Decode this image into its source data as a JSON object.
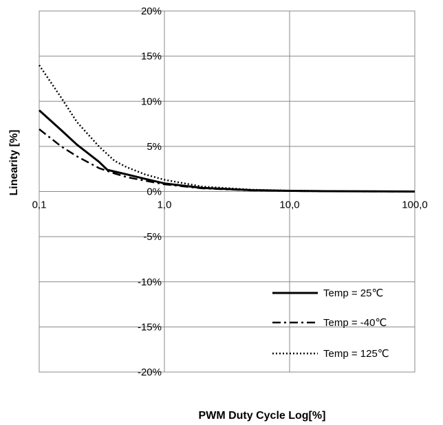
{
  "chart_data": {
    "type": "line",
    "title": "",
    "xlabel": "PWM Duty Cycle Log[%]",
    "ylabel": "Linearity [%]",
    "xscale": "log",
    "xlim": [
      0.1,
      100
    ],
    "ylim": [
      -20,
      20
    ],
    "x_ticks": [
      {
        "value": 0.1,
        "label": "0,1"
      },
      {
        "value": 1,
        "label": "1,0"
      },
      {
        "value": 10,
        "label": "10,0"
      },
      {
        "value": 100,
        "label": "100,0"
      }
    ],
    "y_ticks": [
      {
        "value": 20,
        "label": "20%"
      },
      {
        "value": 15,
        "label": "15%"
      },
      {
        "value": 10,
        "label": "10%"
      },
      {
        "value": 5,
        "label": "5%"
      },
      {
        "value": 0,
        "label": "0%"
      },
      {
        "value": -5,
        "label": "-5%"
      },
      {
        "value": -10,
        "label": "-10%"
      },
      {
        "value": -15,
        "label": "-15%"
      },
      {
        "value": -20,
        "label": "-20%"
      }
    ],
    "grid": true,
    "legend_position": "bottom-right",
    "series": [
      {
        "name": "Temp = 25℃",
        "style": "solid",
        "color": "#000000",
        "x": [
          0.1,
          0.15,
          0.2,
          0.3,
          0.35,
          0.5,
          0.7,
          1,
          2,
          5,
          10,
          20,
          50,
          100
        ],
        "y": [
          9.0,
          6.8,
          5.2,
          3.3,
          2.4,
          1.9,
          1.4,
          0.9,
          0.4,
          0.15,
          0.08,
          0.04,
          0.02,
          0.0
        ]
      },
      {
        "name": "Temp = -40℃",
        "style": "dashdot",
        "color": "#000000",
        "x": [
          0.1,
          0.15,
          0.2,
          0.3,
          0.4,
          0.5,
          0.7,
          1,
          2,
          5,
          10,
          20,
          50,
          100
        ],
        "y": [
          6.9,
          5.0,
          3.9,
          2.6,
          2.0,
          1.6,
          1.2,
          0.8,
          0.35,
          0.12,
          0.06,
          0.03,
          0.01,
          0.0
        ]
      },
      {
        "name": "Temp = 125℃",
        "style": "dotted",
        "color": "#000000",
        "x": [
          0.1,
          0.15,
          0.2,
          0.3,
          0.4,
          0.5,
          0.7,
          1,
          2,
          5,
          10,
          20,
          50,
          100
        ],
        "y": [
          14.0,
          10.4,
          7.7,
          5.0,
          3.4,
          2.7,
          1.9,
          1.3,
          0.55,
          0.2,
          0.1,
          0.05,
          0.02,
          0.0
        ]
      }
    ]
  }
}
